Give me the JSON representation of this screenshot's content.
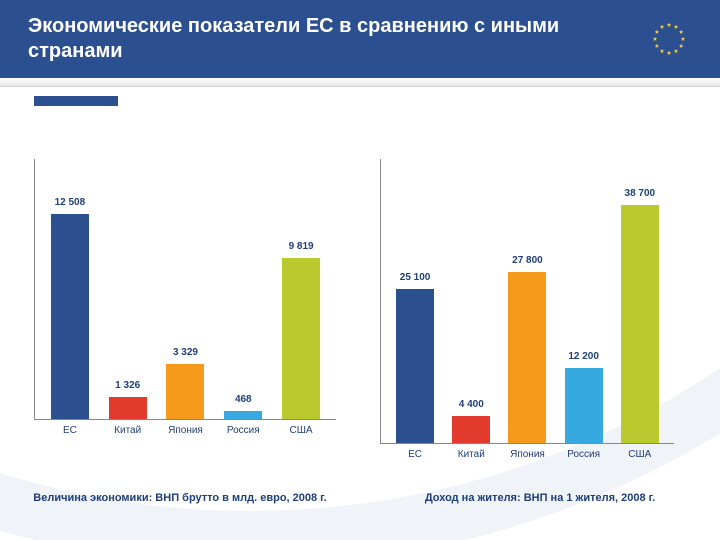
{
  "header": {
    "title": "Экономические показатели ЕС в сравнению с иными странами",
    "flag_stars_color": "#f6c945",
    "flag_bg": "#2c4f8f"
  },
  "theme": {
    "header_bg": "#2c4f8f",
    "title_color": "#ffffff",
    "axis_color": "#888888",
    "label_color": "#1f3f78",
    "accent_bar": "#2c4f8f"
  },
  "chart_left": {
    "type": "bar",
    "caption": "Величина экономики: ВНП брутто в млд. евро, 2008 г.",
    "ymax": 14000,
    "bars": [
      {
        "category": "ЕС",
        "value": 12508,
        "label": "12 508",
        "color": "#2c4f8f"
      },
      {
        "category": "Китай",
        "value": 1326,
        "label": "1 326",
        "color": "#e23b2e"
      },
      {
        "category": "Япония",
        "value": 3329,
        "label": "3 329",
        "color": "#f59a1b"
      },
      {
        "category": "Россия",
        "value": 468,
        "label": "468",
        "color": "#35a9e0"
      },
      {
        "category": "США",
        "value": 9819,
        "label": "9 819",
        "color": "#b9c92e"
      }
    ]
  },
  "chart_right": {
    "type": "bar",
    "caption": "Доход на жителя: ВНП на 1 жителя, 2008 г.",
    "ymax": 42000,
    "bars": [
      {
        "category": "ЕС",
        "value": 25100,
        "label": "25 100",
        "color": "#2c4f8f"
      },
      {
        "category": "Китай",
        "value": 4400,
        "label": "4 400",
        "color": "#e23b2e"
      },
      {
        "category": "Япония",
        "value": 27800,
        "label": "27 800",
        "color": "#f59a1b"
      },
      {
        "category": "Россия",
        "value": 12200,
        "label": "12 200",
        "color": "#35a9e0"
      },
      {
        "category": "США",
        "value": 38700,
        "label": "38 700",
        "color": "#b9c92e"
      }
    ]
  }
}
